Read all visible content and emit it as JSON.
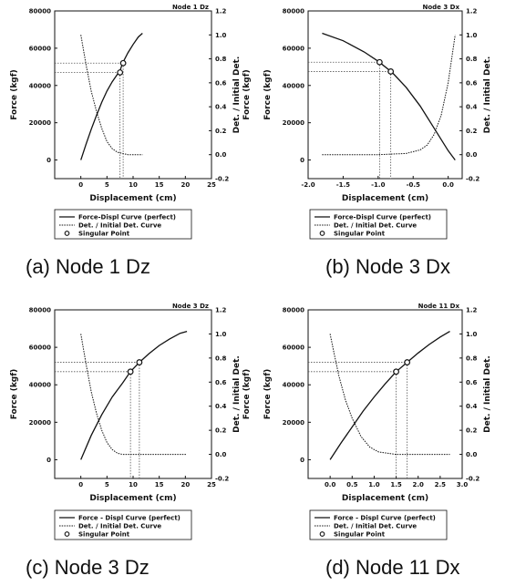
{
  "chart_data": [
    {
      "type": "line",
      "panel": "a",
      "title": "Node 1 Dz",
      "caption": "(a) Node 1 Dz",
      "xlabel": "Displacement (cm)",
      "ylabel": "Force (kgf)",
      "y2label": "Det. / Initial Det.",
      "y2label_extra": "Force (kgf)",
      "xlim": [
        -5,
        25
      ],
      "ylim": [
        -10000,
        80000
      ],
      "y2lim": [
        -0.2,
        1.2
      ],
      "x_ticks": [
        "0",
        "5",
        "10",
        "15",
        "20",
        "25"
      ],
      "y_ticks": [
        "0",
        "20000",
        "40000",
        "60000",
        "80000"
      ],
      "y2_ticks": [
        "-0.2",
        "0.0",
        "0.2",
        "0.4",
        "0.6",
        "0.8",
        "1.0",
        "1.2"
      ],
      "series": [
        {
          "name": "Force-Displ Curve (perfect)",
          "axis": "left",
          "style": "solid",
          "x": [
            0,
            1,
            2,
            3,
            4,
            5,
            6,
            7,
            7.5,
            8,
            9,
            10,
            11,
            11.8
          ],
          "y": [
            0,
            8500,
            16500,
            24000,
            31000,
            37000,
            42000,
            46000,
            48000,
            52000,
            57500,
            62000,
            66000,
            68000
          ]
        },
        {
          "name": "Det. / Initial Det. Curve",
          "axis": "right",
          "style": "dotted",
          "x": [
            0,
            1,
            2,
            3,
            4,
            5,
            6,
            7,
            8,
            9,
            10,
            11,
            11.8
          ],
          "y": [
            1.0,
            0.75,
            0.53,
            0.36,
            0.22,
            0.11,
            0.05,
            0.02,
            0.01,
            0.0,
            0.0,
            0.0,
            0.0
          ]
        }
      ],
      "singular_points": [
        {
          "x": 7.5,
          "y": 47000
        },
        {
          "x": 8.1,
          "y": 52000
        }
      ],
      "legend": [
        "Force-Displ Curve (perfect)",
        "Det. / Initial Det. Curve",
        "Singular Point"
      ]
    },
    {
      "type": "line",
      "panel": "b",
      "title": "Node 3 Dx",
      "caption": "(b) Node 3 Dx",
      "xlabel": "Displacement (cm)",
      "ylabel": "Force (kgf)",
      "y2label": "Det. / Initial Det.",
      "xlim": [
        -2.0,
        0.2
      ],
      "ylim": [
        -10000,
        80000
      ],
      "y2lim": [
        -0.2,
        1.2
      ],
      "x_ticks": [
        "-2.0",
        "-1.5",
        "-1.0",
        "-0.5",
        "0.0"
      ],
      "y_ticks": [
        "0",
        "20000",
        "40000",
        "60000",
        "80000"
      ],
      "y2_ticks": [
        "-0.2",
        "0.0",
        "0.2",
        "0.4",
        "0.6",
        "0.8",
        "1.0",
        "1.2"
      ],
      "series": [
        {
          "name": "Force-Displ Curve (perfect)",
          "axis": "left",
          "style": "solid",
          "x": [
            -1.8,
            -1.5,
            -1.2,
            -1.0,
            -0.8,
            -0.6,
            -0.4,
            -0.2,
            0.0,
            0.1
          ],
          "y": [
            68000,
            64000,
            58000,
            53000,
            47000,
            39000,
            29000,
            17000,
            5000,
            0
          ]
        },
        {
          "name": "Det. / Initial Det. Curve",
          "axis": "right",
          "style": "dotted",
          "x": [
            -1.8,
            -1.0,
            -0.6,
            -0.4,
            -0.3,
            -0.2,
            -0.1,
            0.0,
            0.1
          ],
          "y": [
            0.0,
            0.0,
            0.01,
            0.04,
            0.08,
            0.17,
            0.33,
            0.6,
            1.0
          ]
        }
      ],
      "singular_points": [
        {
          "x": -0.98,
          "y": 52500
        },
        {
          "x": -0.82,
          "y": 47500
        }
      ],
      "legend": [
        "Force-Displ Curve (perfect)",
        "Det. / Initial Det. Curve",
        "Singular Point"
      ]
    },
    {
      "type": "line",
      "panel": "c",
      "title": "Node 3 Dz",
      "caption": "(c) Node 3 Dz",
      "xlabel": "Displacement (cm)",
      "ylabel": "Force (kgf)",
      "y2label": "Det. / Initial Det.",
      "y2label_extra": "Force (kgf)",
      "xlim": [
        -5,
        25
      ],
      "ylim": [
        -10000,
        80000
      ],
      "y2lim": [
        -0.2,
        1.2
      ],
      "x_ticks": [
        "0",
        "5",
        "10",
        "15",
        "20",
        "25"
      ],
      "y_ticks": [
        "0",
        "20000",
        "40000",
        "60000",
        "80000"
      ],
      "y2_ticks": [
        "-0.2",
        "0.0",
        "0.2",
        "0.4",
        "0.6",
        "0.8",
        "1.0",
        "1.2"
      ],
      "series": [
        {
          "name": "Force - Displ Curve (perfect)",
          "axis": "left",
          "style": "solid",
          "x": [
            0,
            2,
            4,
            6,
            8,
            9.5,
            11.2,
            13,
            15,
            17,
            19,
            20.3
          ],
          "y": [
            0,
            13000,
            24000,
            33500,
            41000,
            47000,
            52000,
            56500,
            61000,
            64500,
            67500,
            68500
          ]
        },
        {
          "name": "Det. / Initial Det. Curve",
          "axis": "right",
          "style": "dotted",
          "x": [
            0,
            1,
            2,
            3,
            4,
            5,
            6,
            7,
            8,
            10,
            14,
            20.3
          ],
          "y": [
            1.0,
            0.75,
            0.52,
            0.34,
            0.2,
            0.1,
            0.04,
            0.01,
            0.0,
            0.0,
            0.0,
            0.0
          ]
        }
      ],
      "singular_points": [
        {
          "x": 9.5,
          "y": 47000
        },
        {
          "x": 11.2,
          "y": 52000
        }
      ],
      "legend": [
        "Force - Displ Curve (perfect)",
        "Det. / Initial Det. Curve",
        "Singular Point"
      ]
    },
    {
      "type": "line",
      "panel": "d",
      "title": "Node 11 Dx",
      "caption": "(d) Node 11 Dx",
      "xlabel": "Displacement (cm)",
      "ylabel": "Force (kgf)",
      "y2label": "Det. / Initial Det.",
      "xlim": [
        -0.5,
        3.0
      ],
      "ylim": [
        -10000,
        80000
      ],
      "y2lim": [
        -0.2,
        1.2
      ],
      "x_ticks": [
        "0.0",
        "0.5",
        "1.0",
        "1.5",
        "2.0",
        "2.5",
        "3.0"
      ],
      "y_ticks": [
        "0",
        "20000",
        "40000",
        "60000",
        "80000"
      ],
      "y2_ticks": [
        "-0.2",
        "0.0",
        "0.2",
        "0.4",
        "0.6",
        "0.8",
        "1.0",
        "1.2"
      ],
      "series": [
        {
          "name": "Force - Displ Curve (perfect)",
          "axis": "left",
          "style": "solid",
          "x": [
            0,
            0.25,
            0.5,
            0.75,
            1.0,
            1.25,
            1.5,
            1.75,
            2.0,
            2.25,
            2.5,
            2.72
          ],
          "y": [
            0,
            9000,
            17500,
            26000,
            33500,
            40500,
            47000,
            52000,
            57000,
            61500,
            65500,
            68500
          ]
        },
        {
          "name": "Det. / Initial Det. Curve",
          "axis": "right",
          "style": "dotted",
          "x": [
            0,
            0.1,
            0.2,
            0.35,
            0.5,
            0.7,
            0.9,
            1.1,
            1.3,
            1.5,
            2.0,
            2.72
          ],
          "y": [
            1.0,
            0.82,
            0.65,
            0.45,
            0.3,
            0.15,
            0.06,
            0.02,
            0.01,
            0.0,
            0.0,
            0.0
          ]
        }
      ],
      "singular_points": [
        {
          "x": 1.5,
          "y": 47000
        },
        {
          "x": 1.75,
          "y": 52000
        }
      ],
      "legend": [
        "Force - Displ Curve (perfect)",
        "Det. / Initial Det. Curve",
        "Singular Point"
      ]
    }
  ]
}
